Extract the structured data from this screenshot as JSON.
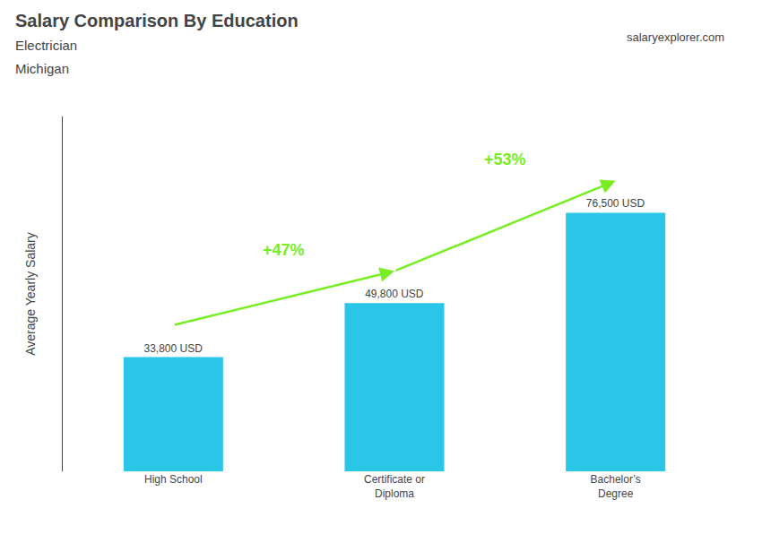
{
  "chart_data": {
    "type": "bar",
    "title": "Salary Comparison By Education",
    "subtitle": [
      "Electrician",
      "Michigan"
    ],
    "source": "salaryexplorer.com",
    "ylabel": "Average Yearly Salary",
    "categories": [
      "High School",
      "Certificate or\nDiploma",
      "Bachelor’s\nDegree"
    ],
    "values": [
      33800,
      49800,
      76500
    ],
    "value_labels": [
      "33,800 USD",
      "49,800 USD",
      "76,500 USD"
    ],
    "data_labels": true,
    "color": "#29C6E8",
    "ylim": [
      0,
      105000
    ],
    "tick_labels": "x",
    "grid": false,
    "annotations": [
      {
        "text": "+47%",
        "color": "#77EE22"
      },
      {
        "text": "+53%",
        "color": "#77EE22"
      }
    ]
  }
}
